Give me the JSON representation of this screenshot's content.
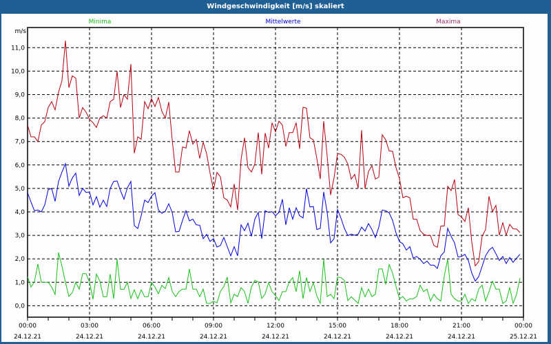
{
  "window": {
    "title": "Windgeschwindigkeit [m/s] skaliert"
  },
  "chart_data": {
    "type": "line",
    "title": "Windgeschwindigkeit [m/s] skaliert",
    "ylabel": "m/s",
    "xlabel": "",
    "ylim": [
      -0.5,
      11.9
    ],
    "xlim_hours": [
      0,
      24
    ],
    "x_step_minutes": 10,
    "x_start": "00:00 24.12.21",
    "grid": true,
    "yticks": [
      0,
      1,
      2,
      3,
      4,
      5,
      6,
      7,
      8,
      9,
      10,
      11
    ],
    "ytick_labels": [
      "0,0",
      "1,0",
      "2,0",
      "3,0",
      "4,0",
      "5,0",
      "6,0",
      "7,0",
      "8,0",
      "9,0",
      "10,0",
      "11,0"
    ],
    "xticks_hours": [
      0,
      3,
      6,
      9,
      12,
      15,
      18,
      21,
      24
    ],
    "xtick_labels": [
      {
        "time": "00:00",
        "date": "24.12.21"
      },
      {
        "time": "03:00",
        "date": "24.12.21"
      },
      {
        "time": "06:00",
        "date": "24.12.21"
      },
      {
        "time": "09:00",
        "date": "24.12.21"
      },
      {
        "time": "12:00",
        "date": "24.12.21"
      },
      {
        "time": "15:00",
        "date": "24.12.21"
      },
      {
        "time": "18:00",
        "date": "24.12.21"
      },
      {
        "time": "21:00",
        "date": "24.12.21"
      },
      {
        "time": "00:00",
        "date": "25.12.21"
      }
    ],
    "legend_placement": "top",
    "series": [
      {
        "name": "Minima",
        "color": "#18c018",
        "values": [
          1.24,
          0.8,
          1.02,
          1.78,
          1.0,
          1.0,
          1.0,
          0.8,
          0.48,
          2.27,
          1.68,
          1.0,
          0.4,
          0.56,
          1.0,
          0.7,
          1.37,
          1.37,
          1.0,
          0.28,
          1.35,
          1.05,
          0.38,
          0.38,
          1.35,
          0.3,
          1.98,
          0.7,
          0.7,
          1.0,
          0.31,
          0.68,
          0.3,
          0.68,
          0.38,
          0.38,
          1.0,
          0.8,
          0.51,
          0.87,
          0.73,
          1.2,
          0.61,
          0.39,
          0.61,
          0.71,
          0.71,
          1.57,
          0.71,
          0.71,
          0.38,
          0.71,
          0.1,
          0.1,
          0.2,
          0.12,
          0.61,
          0.82,
          1.22,
          0.12,
          0.49,
          0.39,
          0.77,
          0.61,
          0.1,
          0.8,
          1.08,
          1.02,
          0.31,
          0.51,
          0.98,
          0.6,
          0.43,
          0.22,
          0.6,
          0.6,
          1.02,
          1.2,
          0.6,
          1.49,
          0.3,
          1.2,
          0.6,
          0.98,
          0.42,
          0.1,
          1.98,
          0.39,
          0.49,
          0.3,
          1.22,
          1.2,
          1.08,
          0.22,
          0.38,
          0.24,
          0.1,
          0.77,
          0.38,
          0.71,
          0.39,
          0.49,
          1.57,
          1.57,
          0.91,
          1.76,
          1.39,
          0.82,
          0.3,
          0.39,
          0.2,
          0.3,
          0.3,
          0.39,
          0.88,
          0.6,
          0.71,
          0.2,
          0.49,
          0.3,
          0.2,
          1.27,
          1.98,
          0.49,
          0.3,
          0.2,
          0.2,
          0.49,
          0.1,
          0.3,
          0.2,
          0.71,
          0.88,
          0.2,
          0.6,
          1.05,
          0.71,
          0.71,
          0.1,
          0.2,
          0.78,
          0.1,
          0.49,
          1.18
        ]
      },
      {
        "name": "Mittelwerte",
        "color": "#0000e0",
        "values": [
          4.82,
          4.42,
          4.05,
          4.08,
          4.0,
          4.3,
          4.95,
          5.0,
          4.45,
          5.3,
          5.7,
          6.06,
          5.1,
          5.45,
          5.65,
          4.7,
          5.0,
          4.83,
          4.85,
          4.3,
          4.65,
          4.2,
          4.5,
          4.23,
          5.0,
          5.3,
          5.32,
          4.9,
          4.54,
          5.03,
          5.3,
          3.42,
          3.29,
          3.84,
          4.5,
          4.4,
          4.67,
          4.82,
          4.08,
          3.94,
          4.03,
          4.35,
          3.98,
          3.15,
          3.17,
          3.64,
          4.05,
          3.62,
          3.69,
          3.45,
          3.43,
          2.86,
          3.04,
          2.74,
          2.86,
          2.5,
          2.57,
          2.91,
          2.52,
          2.13,
          2.52,
          2.13,
          3.45,
          3.2,
          3.52,
          2.96,
          3.69,
          3.98,
          2.86,
          4.05,
          3.98,
          4.01,
          3.84,
          3.98,
          4.54,
          3.45,
          4.18,
          3.69,
          4.18,
          3.84,
          3.74,
          4.99,
          4.21,
          4.23,
          3.25,
          3.3,
          4.85,
          3.98,
          2.68,
          2.86,
          4.11,
          3.74,
          3.3,
          2.99,
          3.05,
          3.01,
          3.05,
          3.35,
          3.18,
          3.5,
          3.25,
          2.91,
          3.35,
          4.08,
          4.05,
          3.96,
          3.64,
          3.1,
          2.74,
          2.64,
          2.37,
          2.52,
          2.03,
          2.1,
          1.98,
          1.8,
          1.9,
          1.73,
          1.73,
          1.59,
          2.13,
          2.29,
          3.3,
          2.96,
          2.68,
          2.08,
          2.1,
          2.19,
          1.93,
          1.39,
          1.05,
          1.24,
          1.68,
          2.13,
          2.37,
          2.49,
          2.22,
          1.93,
          2.1,
          1.8,
          2.06,
          1.85,
          2.03,
          2.19
        ]
      },
      {
        "name": "Maxima",
        "color": "#b80010",
        "legend_color": "#a0306a",
        "values": [
          7.7,
          7.2,
          7.2,
          7.0,
          7.7,
          7.85,
          8.45,
          8.7,
          8.35,
          9.1,
          9.6,
          11.3,
          9.3,
          9.8,
          9.7,
          8.0,
          8.45,
          8.25,
          7.95,
          7.8,
          7.6,
          8.0,
          8.1,
          8.0,
          8.7,
          8.8,
          10.0,
          8.45,
          9.0,
          8.8,
          10.3,
          6.5,
          7.2,
          7.1,
          8.7,
          8.4,
          8.83,
          8.49,
          8.88,
          8.29,
          8.0,
          8.68,
          7.07,
          5.7,
          5.7,
          6.77,
          6.72,
          7.46,
          6.89,
          7.09,
          6.28,
          6.97,
          6.48,
          5.65,
          4.93,
          5.68,
          5.5,
          4.6,
          4.5,
          4.21,
          5.19,
          4.08,
          6.23,
          7.16,
          5.89,
          5.7,
          6.04,
          7.38,
          5.6,
          7.36,
          6.72,
          7.8,
          7.41,
          7.87,
          7.7,
          6.79,
          7.38,
          7.38,
          7.8,
          6.69,
          8.46,
          8.42,
          7.16,
          7.07,
          6.28,
          5.4,
          7.87,
          6.38,
          4.72,
          5.45,
          6.48,
          6.46,
          6.33,
          6.04,
          5.4,
          5.6,
          5.01,
          7.48,
          4.99,
          5.72,
          5.97,
          5.4,
          5.48,
          7.29,
          7.07,
          6.6,
          6.58,
          5.89,
          5.42,
          4.6,
          4.67,
          4.6,
          3.69,
          3.69,
          3.2,
          3.05,
          2.99,
          2.99,
          2.57,
          2.49,
          3.4,
          3.4,
          5.09,
          4.91,
          5.38,
          3.89,
          3.79,
          3.59,
          4.18,
          2.71,
          1.7,
          1.88,
          2.96,
          3.25,
          4.67,
          4.01,
          4.28,
          3.01,
          3.54,
          3.01,
          3.47,
          3.28,
          3.27,
          3.12
        ]
      }
    ]
  }
}
